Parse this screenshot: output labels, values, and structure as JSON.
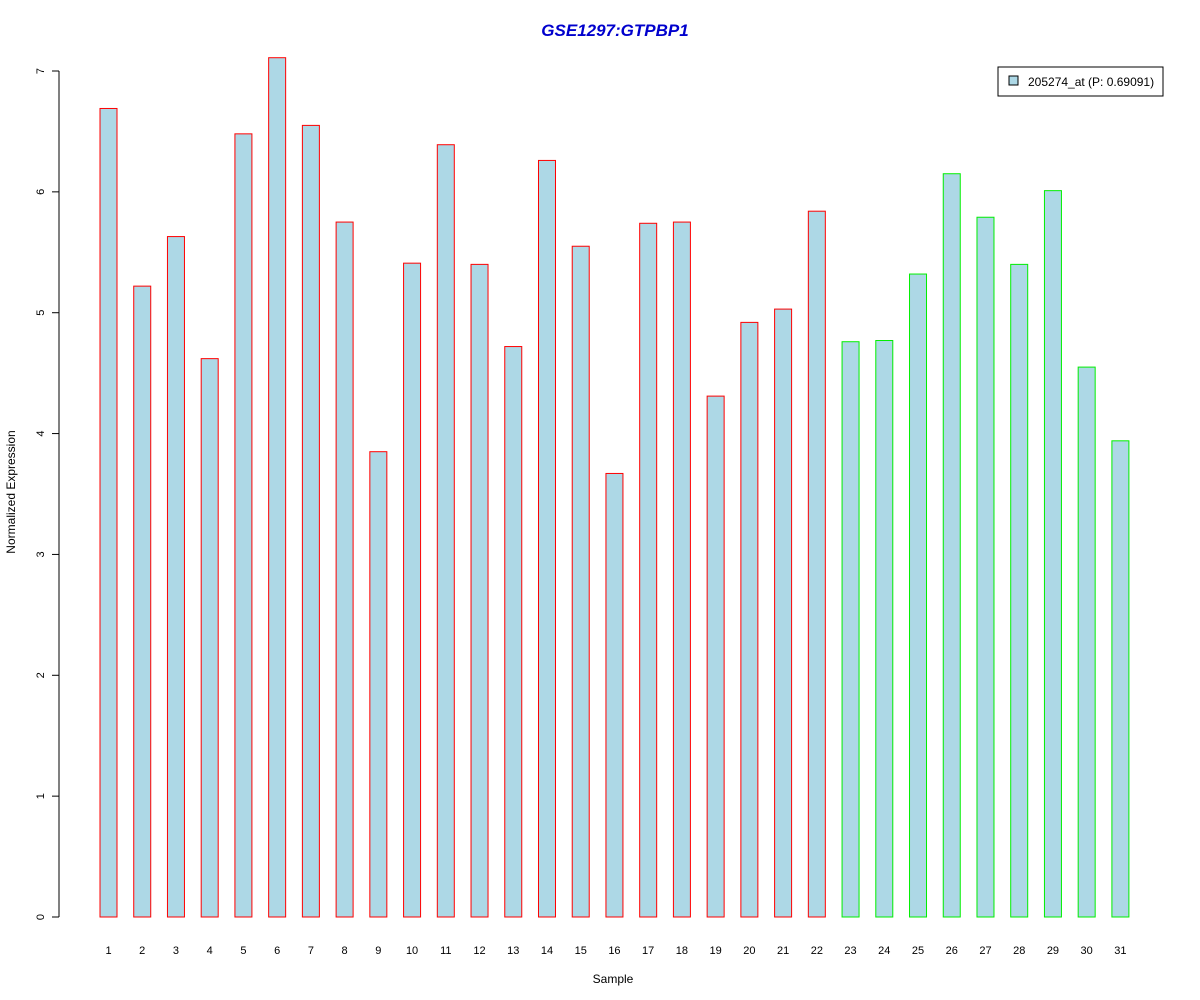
{
  "chart_data": {
    "type": "bar",
    "title": "GSE1297:GTPBP1",
    "xlabel": "Sample",
    "ylabel": "Normalized Expression",
    "ylim": [
      0,
      7
    ],
    "yticks": [
      "0",
      "1",
      "2",
      "3",
      "4",
      "5",
      "6",
      "7"
    ],
    "categories": [
      "1",
      "2",
      "3",
      "4",
      "5",
      "6",
      "7",
      "8",
      "9",
      "10",
      "11",
      "12",
      "13",
      "14",
      "15",
      "16",
      "17",
      "18",
      "19",
      "20",
      "21",
      "22",
      "23",
      "24",
      "25",
      "26",
      "27",
      "28",
      "29",
      "30",
      "31"
    ],
    "series": [
      {
        "name": "205274_at (P: 0.69091)",
        "values": [
          6.69,
          5.22,
          5.63,
          4.62,
          6.48,
          7.11,
          6.55,
          5.75,
          3.85,
          5.41,
          6.39,
          5.4,
          4.72,
          6.26,
          5.55,
          3.67,
          5.74,
          5.75,
          4.31,
          4.92,
          5.03,
          5.84,
          4.76,
          4.77,
          5.32,
          6.15,
          5.79,
          5.4,
          6.01,
          4.55,
          3.94
        ]
      }
    ],
    "groups": [
      {
        "outline_color": "#ff0000",
        "samples": [
          "1",
          "2",
          "3",
          "4",
          "5",
          "6",
          "7",
          "8",
          "9",
          "10",
          "11",
          "12",
          "13",
          "14",
          "15",
          "16",
          "17",
          "18",
          "19",
          "20",
          "21",
          "22"
        ]
      },
      {
        "outline_color": "#00ee00",
        "samples": [
          "23",
          "24",
          "25",
          "26",
          "27",
          "28",
          "29",
          "30",
          "31"
        ]
      }
    ],
    "fill_color": "#add8e6",
    "title_color": "#0000cd",
    "grid": false,
    "legend_position": "top-right"
  }
}
